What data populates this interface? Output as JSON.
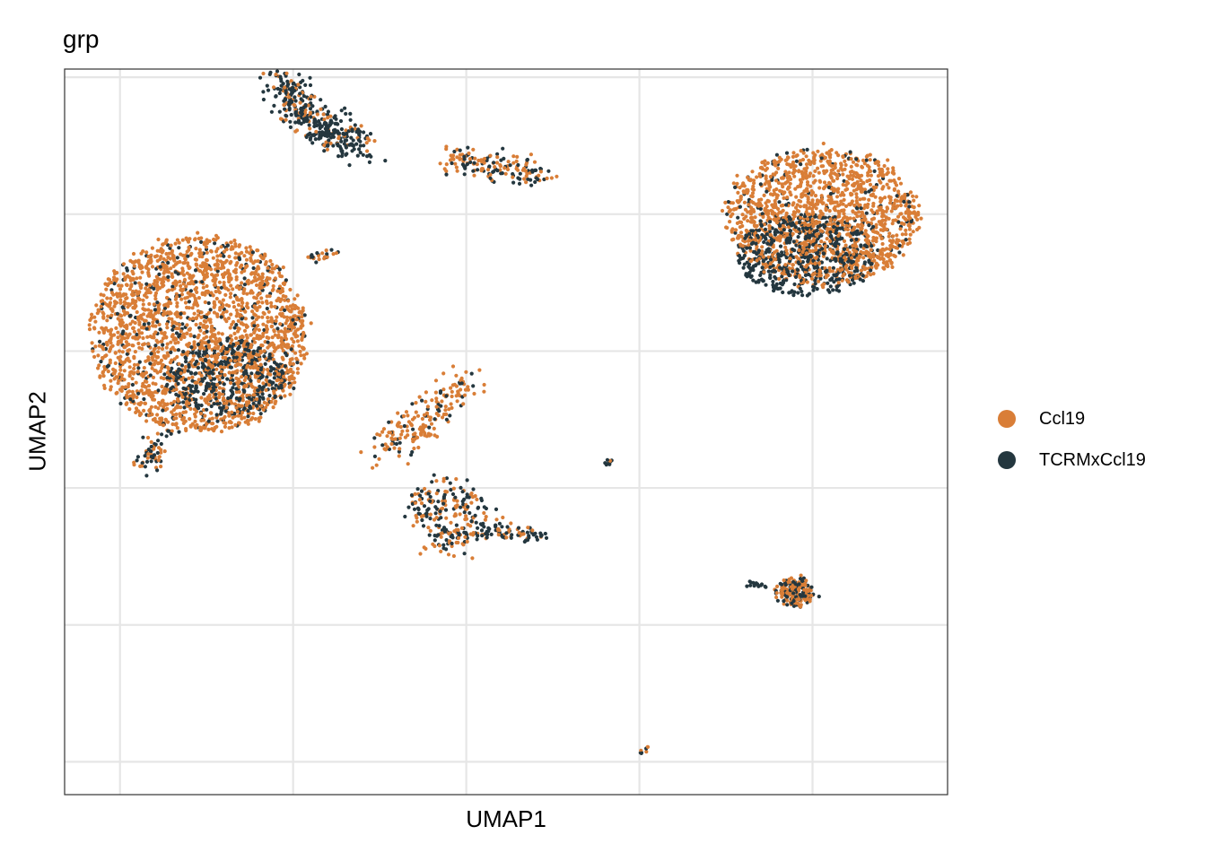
{
  "chart_data": {
    "type": "scatter",
    "title": "grp",
    "xlabel": "UMAP1",
    "ylabel": "UMAP2",
    "xlim": [
      -1.6,
      23.9
    ],
    "ylim": [
      -18.7,
      7.8
    ],
    "grid": true,
    "legend_placement": "right",
    "series": [
      {
        "name": "Ccl19",
        "color": "#D97E37"
      },
      {
        "name": "TCRMxCcl19",
        "color": "#24373F"
      }
    ],
    "clusters": [
      {
        "name": "large-left",
        "cx": 2.3,
        "cy": -1.9,
        "rx": 3.1,
        "ry": 3.6,
        "n": 2300,
        "dark_fraction": 0.12,
        "dark_center": [
          3.0,
          -3.5
        ],
        "dark_rx": 1.8,
        "dark_ry": 1.4,
        "dark_extra": 380
      },
      {
        "name": "large-right",
        "cx": 20.3,
        "cy": 2.4,
        "rx": 2.8,
        "ry": 2.5,
        "n": 1500,
        "dark_fraction": 0.1,
        "dark_center": [
          19.8,
          1.0
        ],
        "dark_rx": 2.0,
        "dark_ry": 1.5,
        "dark_extra": 520
      },
      {
        "name": "top-left-streak",
        "path": [
          [
            4.8,
            7.4
          ],
          [
            5.2,
            6.2
          ],
          [
            6.0,
            5.5
          ],
          [
            7.0,
            5.0
          ]
        ],
        "width": 0.3,
        "n": 380,
        "dark_fraction": 0.8
      },
      {
        "name": "top-mid-streak",
        "path": [
          [
            9.5,
            4.5
          ],
          [
            10.5,
            4.3
          ],
          [
            11.5,
            4.1
          ],
          [
            12.2,
            3.8
          ]
        ],
        "width": 0.25,
        "n": 160,
        "dark_fraction": 0.45
      },
      {
        "name": "small-left-streak",
        "path": [
          [
            5.5,
            0.8
          ],
          [
            6.2,
            1.2
          ]
        ],
        "width": 0.1,
        "n": 25,
        "dark_fraction": 0.3
      },
      {
        "name": "mid-left-arc",
        "path": [
          [
            7.6,
            -6.2
          ],
          [
            8.5,
            -5.3
          ],
          [
            9.5,
            -4.1
          ],
          [
            10.1,
            -3.6
          ]
        ],
        "width": 0.35,
        "n": 190,
        "dark_fraction": 0.2
      },
      {
        "name": "lower-loop",
        "path": [
          [
            8.6,
            -8.0
          ],
          [
            9.4,
            -9.5
          ],
          [
            10.2,
            -9.2
          ],
          [
            10.0,
            -7.8
          ],
          [
            9.2,
            -7.6
          ],
          [
            8.6,
            -8.0
          ]
        ],
        "width": 0.3,
        "n": 240,
        "dark_fraction": 0.45
      },
      {
        "name": "lower-streak",
        "path": [
          [
            10.5,
            -9.0
          ],
          [
            11.5,
            -9.2
          ],
          [
            12.2,
            -9.3
          ]
        ],
        "width": 0.12,
        "n": 70,
        "dark_fraction": 0.6
      },
      {
        "name": "lower-right-blob",
        "cx": 19.5,
        "cy": -11.3,
        "rx": 0.5,
        "ry": 0.5,
        "n": 200,
        "dark_fraction": 0.45
      },
      {
        "name": "lower-right-tail",
        "path": [
          [
            18.1,
            -11.0
          ],
          [
            18.8,
            -11.1
          ]
        ],
        "width": 0.06,
        "n": 15,
        "dark_fraction": 0.9
      },
      {
        "name": "tiny-center",
        "path": [
          [
            14.0,
            -6.6
          ],
          [
            14.2,
            -6.5
          ]
        ],
        "width": 0.04,
        "n": 8,
        "dark_fraction": 0.9
      },
      {
        "name": "tiny-bottom",
        "path": [
          [
            15.0,
            -17.2
          ],
          [
            15.3,
            -16.9
          ]
        ],
        "width": 0.04,
        "n": 8,
        "dark_fraction": 0.5
      },
      {
        "name": "small-lobe-left",
        "path": [
          [
            0.8,
            -6.8
          ],
          [
            1.0,
            -6.0
          ],
          [
            1.2,
            -5.4
          ]
        ],
        "width": 0.2,
        "n": 60,
        "dark_fraction": 0.5
      }
    ]
  }
}
